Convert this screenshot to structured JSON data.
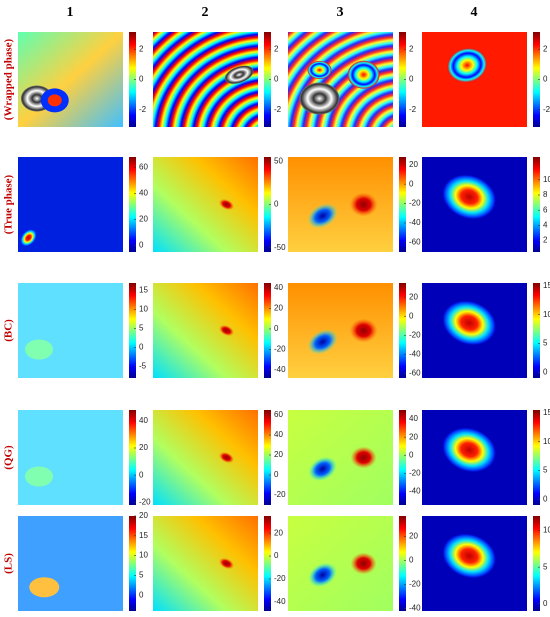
{
  "columns": [
    "1",
    "2",
    "3",
    "4"
  ],
  "rows": [
    {
      "label": "(Wrapped phase)",
      "panels": [
        {
          "clim": [
            -3.14,
            3.14
          ],
          "colorbar_ticks": [
            2,
            0,
            -2
          ]
        },
        {
          "clim": [
            -3.14,
            3.14
          ],
          "colorbar_ticks": [
            2,
            0,
            -2
          ]
        },
        {
          "clim": [
            -3.14,
            3.14
          ],
          "colorbar_ticks": [
            2,
            0,
            -2
          ]
        },
        {
          "clim": [
            -3.14,
            3.14
          ],
          "colorbar_ticks": [
            2,
            0,
            -2
          ]
        }
      ]
    },
    {
      "label": "(True phase)",
      "panels": [
        {
          "clim": [
            -5,
            68
          ],
          "colorbar_ticks": [
            60,
            40,
            20,
            0
          ]
        },
        {
          "clim": [
            -55,
            55
          ],
          "colorbar_ticks": [
            50,
            0,
            -50
          ]
        },
        {
          "clim": [
            -70,
            28
          ],
          "colorbar_ticks": [
            20,
            0,
            -20,
            -40,
            -60
          ]
        },
        {
          "clim": [
            0.5,
            13
          ],
          "colorbar_ticks": [
            10,
            8,
            6,
            4,
            2
          ]
        }
      ]
    },
    {
      "label": "(BC)",
      "panels": [
        {
          "clim": [
            -8,
            17
          ],
          "colorbar_ticks": [
            15,
            10,
            5,
            0,
            -5
          ]
        },
        {
          "clim": [
            -48,
            45
          ],
          "colorbar_ticks": [
            40,
            20,
            0,
            -20,
            -40
          ]
        },
        {
          "clim": [
            -65,
            35
          ],
          "colorbar_ticks": [
            20,
            0,
            -20,
            -40,
            -60
          ]
        },
        {
          "clim": [
            -1,
            15.5
          ],
          "colorbar_ticks": [
            15,
            10,
            5,
            0
          ]
        }
      ]
    },
    {
      "label": "(QG)",
      "panels": [
        {
          "clim": [
            -22,
            48
          ],
          "colorbar_ticks": [
            40,
            20,
            0,
            -20
          ]
        },
        {
          "clim": [
            -30,
            65
          ],
          "colorbar_ticks": [
            60,
            40,
            20,
            0,
            -20
          ]
        },
        {
          "clim": [
            -55,
            50
          ],
          "colorbar_ticks": [
            40,
            20,
            0,
            -20,
            -40
          ]
        },
        {
          "clim": [
            -1,
            15.5
          ],
          "colorbar_ticks": [
            15,
            10,
            5,
            0
          ]
        }
      ]
    },
    {
      "label": "(LS)",
      "panels": [
        {
          "clim": [
            -4,
            20
          ],
          "colorbar_ticks": [
            20,
            15,
            10,
            5,
            0
          ]
        },
        {
          "clim": [
            -48,
            35
          ],
          "colorbar_ticks": [
            20,
            0,
            -20,
            -40
          ]
        },
        {
          "clim": [
            -42,
            37
          ],
          "colorbar_ticks": [
            20,
            0,
            -20,
            -40
          ]
        },
        {
          "clim": [
            -1,
            12
          ],
          "colorbar_ticks": [
            10,
            5,
            0
          ]
        }
      ]
    }
  ]
}
